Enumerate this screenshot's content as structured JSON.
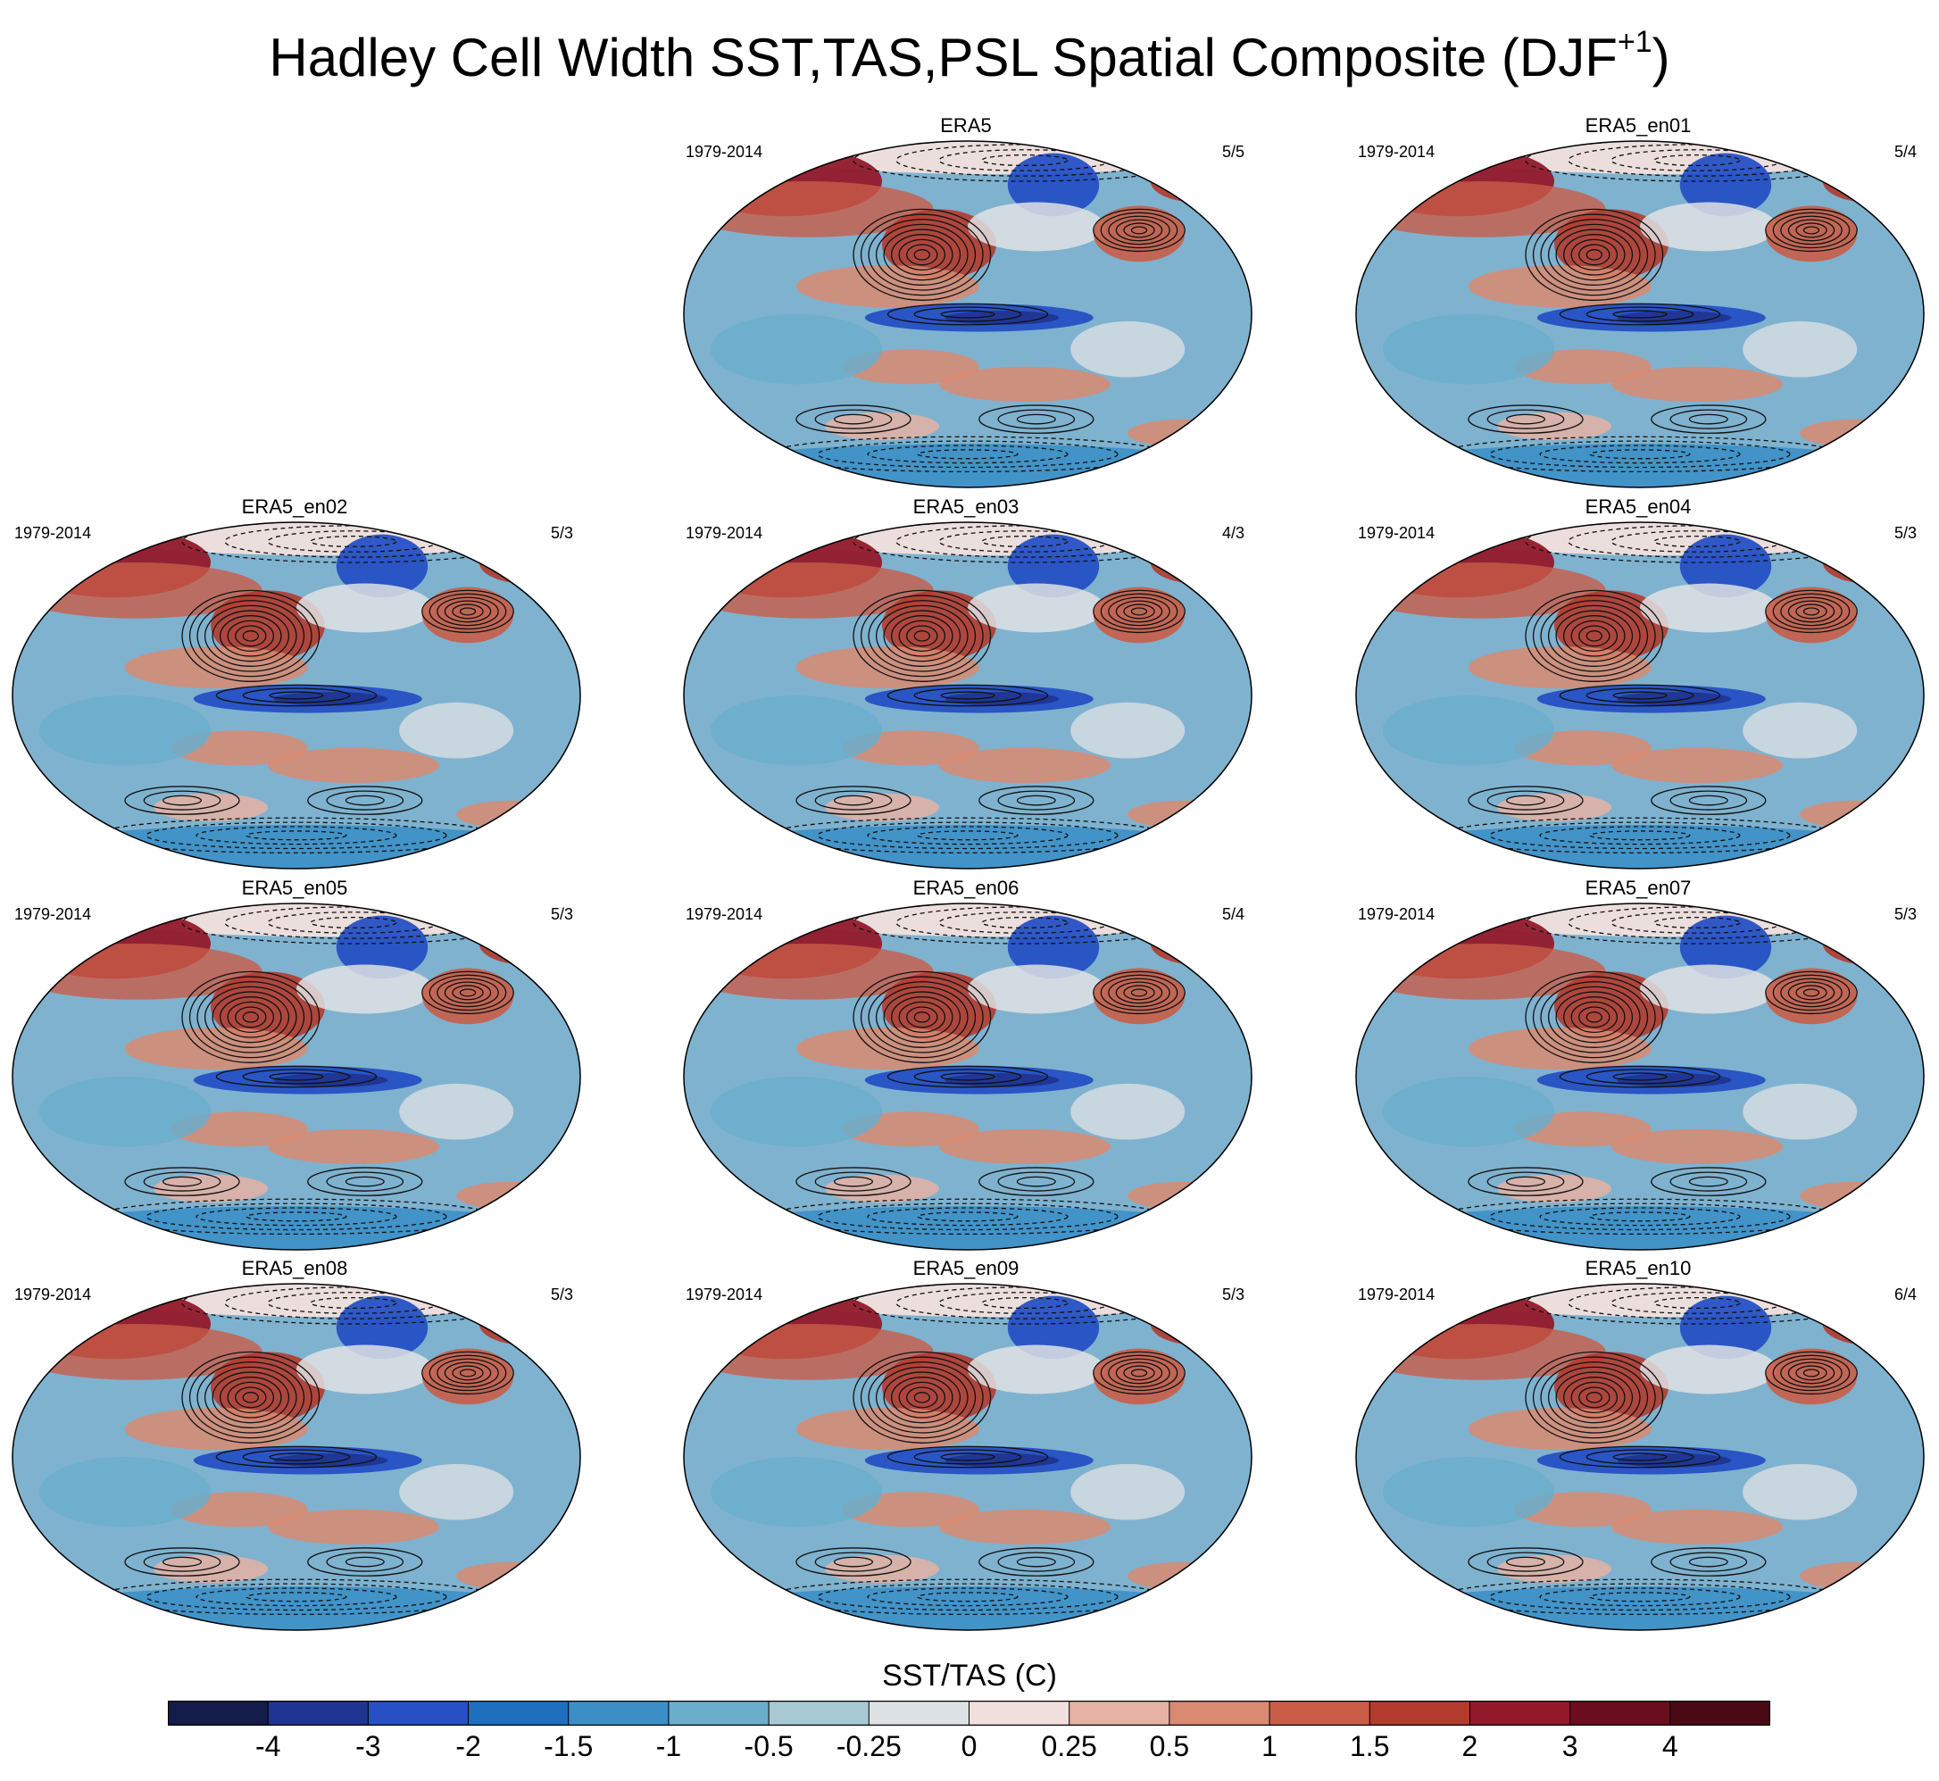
{
  "title": {
    "main": "Hadley Cell Width SST,TAS,PSL Spatial Composite (DJF",
    "superscript": "+1",
    "close": ")"
  },
  "panels": [
    {
      "name": "ERA5",
      "period": "1979-2014",
      "ratio": "5/5"
    },
    {
      "name": "ERA5_en01",
      "period": "1979-2014",
      "ratio": "5/4"
    },
    {
      "name": "ERA5_en02",
      "period": "1979-2014",
      "ratio": "5/3"
    },
    {
      "name": "ERA5_en03",
      "period": "1979-2014",
      "ratio": "4/3"
    },
    {
      "name": "ERA5_en04",
      "period": "1979-2014",
      "ratio": "5/3"
    },
    {
      "name": "ERA5_en05",
      "period": "1979-2014",
      "ratio": "5/3"
    },
    {
      "name": "ERA5_en06",
      "period": "1979-2014",
      "ratio": "5/4"
    },
    {
      "name": "ERA5_en07",
      "period": "1979-2014",
      "ratio": "5/3"
    },
    {
      "name": "ERA5_en08",
      "period": "1979-2014",
      "ratio": "5/3"
    },
    {
      "name": "ERA5_en09",
      "period": "1979-2014",
      "ratio": "5/3"
    },
    {
      "name": "ERA5_en10",
      "period": "1979-2014",
      "ratio": "6/4"
    }
  ],
  "chart_data": {
    "type": "heatmap",
    "projection": "Robinson global map with PSL contour overlay",
    "colorbar": {
      "title": "SST/TAS (C)",
      "labels": [
        "-4",
        "-3",
        "-2",
        "-1.5",
        "-1",
        "-0.5",
        "-0.25",
        "0",
        "0.25",
        "0.5",
        "1",
        "1.5",
        "2",
        "3",
        "4"
      ],
      "colors": [
        "#141c4a",
        "#1f3592",
        "#2650c4",
        "#1f6fc0",
        "#3c8fc6",
        "#6aaecb",
        "#a7c9d3",
        "#dfe2e4",
        "#f2e0dc",
        "#e5b2a3",
        "#d98a71",
        "#c95d47",
        "#b33b2e",
        "#92192a",
        "#6a0e1e",
        "#4a0a15"
      ]
    }
  }
}
